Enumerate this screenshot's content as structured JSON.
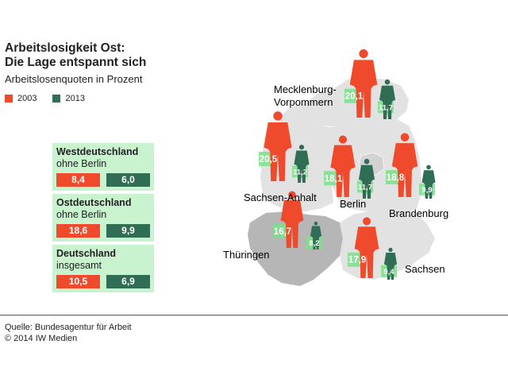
{
  "title_line1": "Arbeitslosigkeit Ost:",
  "title_line2": "Die Lage entspannt sich",
  "subtitle": "Arbeitslosenquoten in Prozent",
  "colors": {
    "y2003": "#ee4a2b",
    "y2013": "#2f6d55",
    "box_bg": "#c9f2cf",
    "map_light": "#e2e2e2",
    "map_dark": "#b6b6b6"
  },
  "summary": [
    {
      "title": "Westdeutschland",
      "sub": "ohne Berlin",
      "v2003": "8,4",
      "v2013": "6,0"
    },
    {
      "title": "Ostdeutschland",
      "sub": "ohne Berlin",
      "v2003": "18,6",
      "v2013": "9,9"
    },
    {
      "title": "Deutschland",
      "sub": "insgesamt",
      "v2003": "10,5",
      "v2013": "6,9"
    }
  ],
  "source_line1": "Quelle: Bundesagentur für Arbeit",
  "source_line2": "© 2014 IW Medien",
  "chart_data": {
    "type": "bar",
    "title": "Arbeitslosigkeit Ost: Die Lage entspannt sich",
    "subtitle": "Arbeitslosenquoten in Prozent",
    "series": [
      {
        "name": "2003",
        "values": [
          20.1,
          20.5,
          18.1,
          18.8,
          16.7,
          17.9
        ]
      },
      {
        "name": "2013",
        "values": [
          11.7,
          11.2,
          11.7,
          9.9,
          8.2,
          9.4
        ]
      }
    ],
    "categories": [
      "Mecklenburg-Vorpommern",
      "Sachsen-Anhalt",
      "Berlin",
      "Brandenburg",
      "Thüringen",
      "Sachsen"
    ],
    "regions": [
      {
        "name_lines": [
          "Mecklenburg-",
          "Vorpommern"
        ],
        "v2003": 20.1,
        "v2013": 11.7,
        "l2003": "20,1",
        "l2013": "11,7"
      },
      {
        "name_lines": [
          "Sachsen-Anhalt"
        ],
        "v2003": 20.5,
        "v2013": 11.2,
        "l2003": "20,5",
        "l2013": "11,2"
      },
      {
        "name_lines": [
          "Berlin"
        ],
        "v2003": 18.1,
        "v2013": 11.7,
        "l2003": "18,1",
        "l2013": "11,7"
      },
      {
        "name_lines": [
          "Brandenburg"
        ],
        "v2003": 18.8,
        "v2013": 9.9,
        "l2003": "18,8",
        "l2013": "9,9"
      },
      {
        "name_lines": [
          "Thüringen"
        ],
        "v2003": 16.7,
        "v2013": 8.2,
        "l2003": "16,7",
        "l2013": "8,2"
      },
      {
        "name_lines": [
          "Sachsen"
        ],
        "v2003": 17.9,
        "v2013": 9.4,
        "l2003": "17,9",
        "l2013": "9,4"
      }
    ]
  }
}
